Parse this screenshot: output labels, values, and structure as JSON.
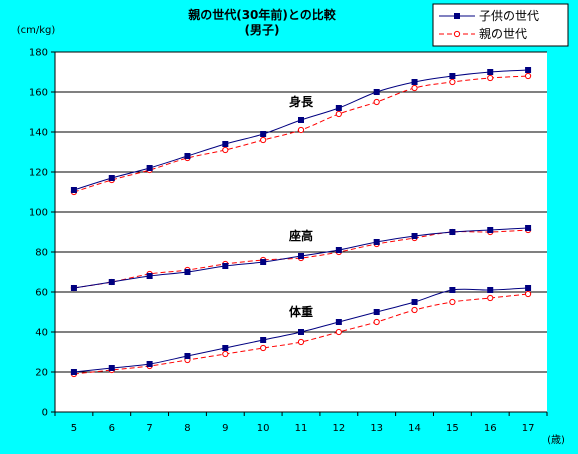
{
  "chart_data": {
    "type": "line",
    "title": "親の世代(30年前)との比較",
    "subtitle": "(男子)",
    "ylabel": "(cm/kg)",
    "xlabel": "(歳)",
    "x": [
      5,
      6,
      7,
      8,
      9,
      10,
      11,
      12,
      13,
      14,
      15,
      16,
      17
    ],
    "ylim": [
      0,
      180
    ],
    "yticks": [
      0,
      20,
      40,
      60,
      80,
      100,
      120,
      140,
      160,
      180
    ],
    "grid": true,
    "legend_position": "top-right",
    "legend": [
      {
        "name": "子供の世代",
        "color": "#000080",
        "marker": "filled-square",
        "dash": "solid"
      },
      {
        "name": "親の世代",
        "color": "#ff0000",
        "marker": "open-circle",
        "dash": "dashed"
      }
    ],
    "groups": [
      {
        "label": "身長",
        "children": [
          111,
          117,
          122,
          128,
          134,
          139,
          146,
          152,
          160,
          165,
          168,
          170,
          171
        ],
        "parents": [
          110,
          116,
          121,
          127,
          131,
          136,
          141,
          149,
          155,
          162,
          165,
          167,
          168
        ]
      },
      {
        "label": "座高",
        "children": [
          62,
          65,
          68,
          70,
          73,
          75,
          78,
          81,
          85,
          88,
          90,
          91,
          92
        ],
        "parents": [
          62,
          65,
          69,
          71,
          74,
          76,
          77,
          80,
          84,
          87,
          90,
          90,
          91
        ]
      },
      {
        "label": "体重",
        "children": [
          20,
          22,
          24,
          28,
          32,
          36,
          40,
          45,
          50,
          55,
          61,
          61,
          62
        ],
        "parents": [
          19,
          21,
          23,
          26,
          29,
          32,
          35,
          40,
          45,
          51,
          55,
          57,
          59
        ]
      }
    ]
  }
}
